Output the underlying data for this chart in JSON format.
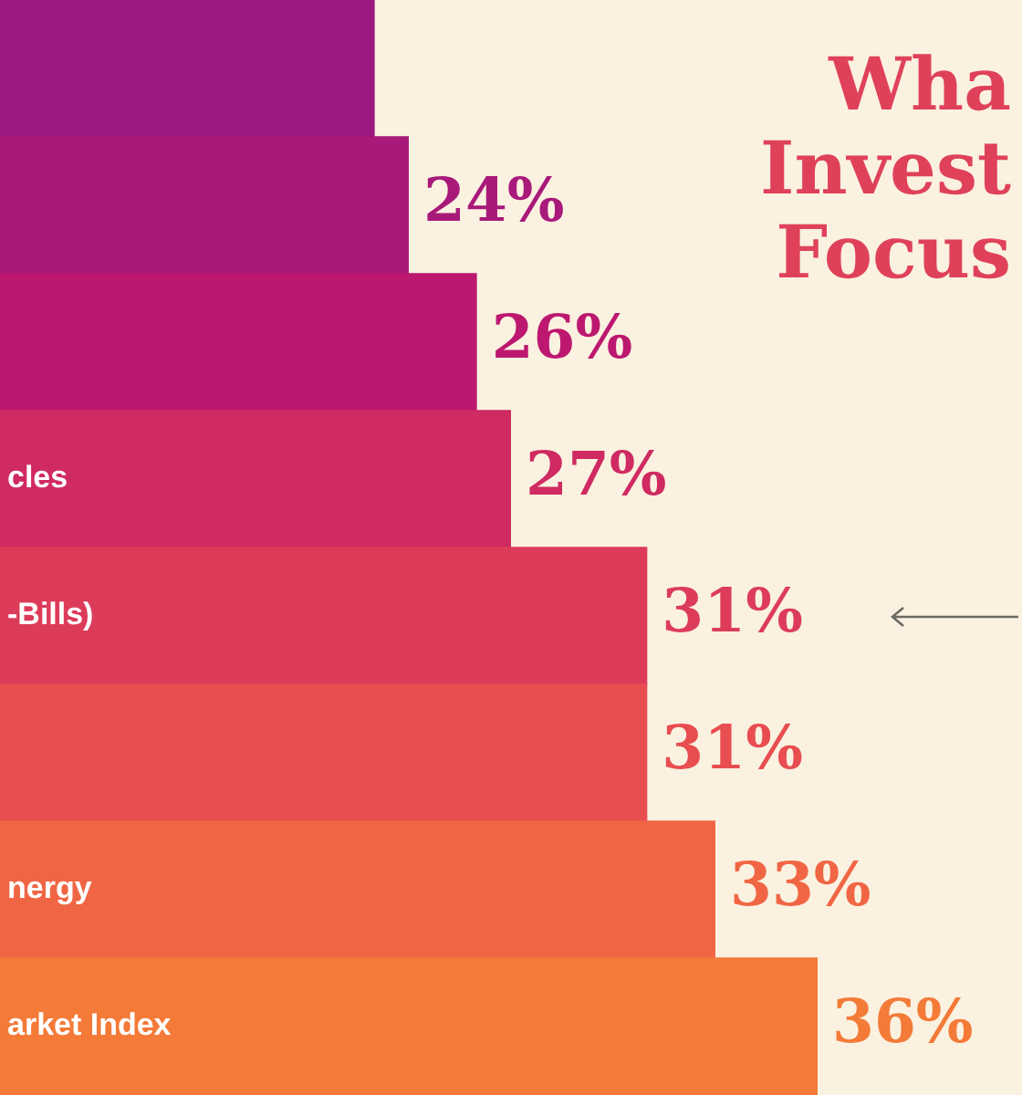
{
  "chart_data": {
    "type": "bar",
    "orientation": "horizontal",
    "title": "Wha Invest Focus",
    "categories": [
      null,
      null,
      null,
      "cles",
      "-Bills)",
      null,
      "nergy",
      "arket Index"
    ],
    "values": [
      23,
      24,
      26,
      27,
      31,
      31,
      33,
      36
    ],
    "value_labels": [
      null,
      "24%",
      "26%",
      "27%",
      "31%",
      "31%",
      "33%",
      "36%"
    ],
    "colors": [
      "#9c1a80",
      "#a8197a",
      "#bd1870",
      "#cf2a62",
      "#dc3c5a",
      "#e84d50",
      "#f06644",
      "#f47a38"
    ],
    "xlim": [
      12,
      42
    ],
    "legend": false
  }
}
